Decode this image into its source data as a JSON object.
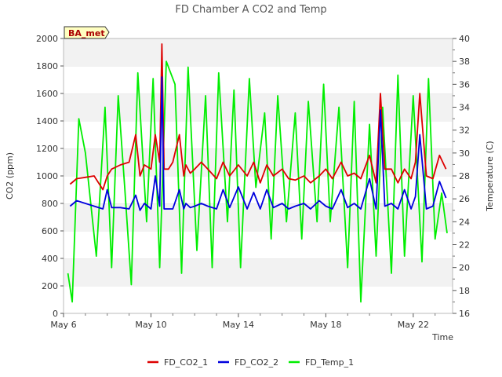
{
  "chart_data": {
    "type": "line",
    "title": "FD Chamber A CO2 and Temp",
    "site_badge": "BA_met",
    "xlabel": "Time",
    "ylabel_left": "CO2 (ppm)",
    "ylabel_right": "Temperature (C)",
    "x_ticks": [
      "May 6",
      "May 10",
      "May 14",
      "May 18",
      "May 22"
    ],
    "x_tick_days": [
      6,
      10,
      14,
      18,
      22
    ],
    "xlim_days": [
      6.0,
      23.8
    ],
    "ylim_left": [
      0,
      2000
    ],
    "y_ticks_left": [
      0,
      200,
      400,
      600,
      800,
      1000,
      1200,
      1400,
      1600,
      1800,
      2000
    ],
    "ylim_right": [
      16,
      40
    ],
    "y_ticks_right": [
      16,
      18,
      20,
      22,
      24,
      26,
      28,
      30,
      32,
      34,
      36,
      38,
      40
    ],
    "grid": "horizontal bands",
    "legend_position": "bottom",
    "series": [
      {
        "name": "FD_CO2_1",
        "axis": "left",
        "color": "#dd0000",
        "x": [
          6.3,
          6.6,
          7.0,
          7.4,
          7.8,
          8.0,
          8.2,
          8.6,
          9.0,
          9.3,
          9.5,
          9.7,
          10.0,
          10.2,
          10.4,
          10.5,
          10.6,
          10.8,
          11.0,
          11.3,
          11.5,
          11.6,
          11.8,
          12.0,
          12.3,
          12.6,
          13.0,
          13.3,
          13.6,
          14.0,
          14.4,
          14.7,
          15.0,
          15.3,
          15.6,
          16.0,
          16.3,
          16.6,
          17.0,
          17.3,
          17.7,
          18.0,
          18.3,
          18.7,
          19.0,
          19.3,
          19.6,
          20.0,
          20.3,
          20.5,
          20.7,
          21.0,
          21.3,
          21.6,
          21.9,
          22.1,
          22.3,
          22.6,
          22.9,
          23.2,
          23.5
        ],
        "y": [
          940,
          980,
          990,
          1000,
          900,
          1000,
          1050,
          1080,
          1100,
          1300,
          1000,
          1080,
          1050,
          1300,
          1100,
          1960,
          1050,
          1050,
          1100,
          1300,
          1000,
          1080,
          1020,
          1050,
          1100,
          1050,
          980,
          1100,
          1000,
          1080,
          1000,
          1100,
          950,
          1080,
          1000,
          1050,
          980,
          970,
          1000,
          950,
          1000,
          1050,
          980,
          1100,
          1000,
          1020,
          980,
          1150,
          950,
          1600,
          1050,
          1050,
          950,
          1050,
          980,
          1100,
          1600,
          1000,
          980,
          1150,
          1050
        ]
      },
      {
        "name": "FD_CO2_2",
        "axis": "left",
        "color": "#0000dd",
        "x": [
          6.3,
          6.6,
          7.0,
          7.4,
          7.8,
          8.0,
          8.2,
          8.6,
          9.0,
          9.3,
          9.5,
          9.7,
          10.0,
          10.2,
          10.4,
          10.5,
          10.6,
          10.8,
          11.0,
          11.3,
          11.5,
          11.6,
          11.8,
          12.0,
          12.3,
          12.6,
          13.0,
          13.3,
          13.6,
          14.0,
          14.4,
          14.7,
          15.0,
          15.3,
          15.6,
          16.0,
          16.3,
          16.6,
          17.0,
          17.3,
          17.7,
          18.0,
          18.3,
          18.7,
          19.0,
          19.3,
          19.6,
          20.0,
          20.3,
          20.5,
          20.7,
          21.0,
          21.3,
          21.6,
          21.9,
          22.1,
          22.3,
          22.6,
          22.9,
          23.2,
          23.5
        ],
        "y": [
          780,
          820,
          800,
          780,
          760,
          900,
          770,
          770,
          760,
          860,
          750,
          800,
          760,
          1000,
          780,
          1720,
          760,
          760,
          760,
          900,
          760,
          800,
          770,
          780,
          800,
          780,
          760,
          900,
          770,
          920,
          760,
          880,
          760,
          900,
          770,
          800,
          760,
          780,
          800,
          760,
          820,
          780,
          760,
          900,
          770,
          800,
          760,
          980,
          760,
          1480,
          780,
          800,
          760,
          900,
          760,
          850,
          1300,
          760,
          780,
          960,
          840
        ]
      },
      {
        "name": "FD_Temp_1",
        "axis": "right",
        "color": "#00ee00",
        "x": [
          6.2,
          6.4,
          6.7,
          7.0,
          7.5,
          7.9,
          8.2,
          8.5,
          8.8,
          9.1,
          9.4,
          9.8,
          10.1,
          10.4,
          10.7,
          11.1,
          11.4,
          11.7,
          12.1,
          12.5,
          12.8,
          13.1,
          13.5,
          13.8,
          14.1,
          14.5,
          14.8,
          15.2,
          15.5,
          15.8,
          16.2,
          16.6,
          16.9,
          17.2,
          17.6,
          17.9,
          18.2,
          18.6,
          19.0,
          19.3,
          19.6,
          20.0,
          20.3,
          20.6,
          21.0,
          21.3,
          21.6,
          22.0,
          22.4,
          22.7,
          23.0,
          23.3,
          23.55
        ],
        "y": [
          19.5,
          17.0,
          33.0,
          30.0,
          21.0,
          34.0,
          20.0,
          35.0,
          27.0,
          18.5,
          37.0,
          24.0,
          36.5,
          20.0,
          38.0,
          36.0,
          19.5,
          37.5,
          21.5,
          35.0,
          20.0,
          37.0,
          24.0,
          35.5,
          20.0,
          36.5,
          27.0,
          33.5,
          22.5,
          35.0,
          24.0,
          33.5,
          22.5,
          34.5,
          24.0,
          36.0,
          24.0,
          34.0,
          20.0,
          34.5,
          17.0,
          32.5,
          21.0,
          34.0,
          19.5,
          36.8,
          21.0,
          35.0,
          20.5,
          36.5,
          22.5,
          26.5,
          23.0
        ]
      }
    ]
  }
}
